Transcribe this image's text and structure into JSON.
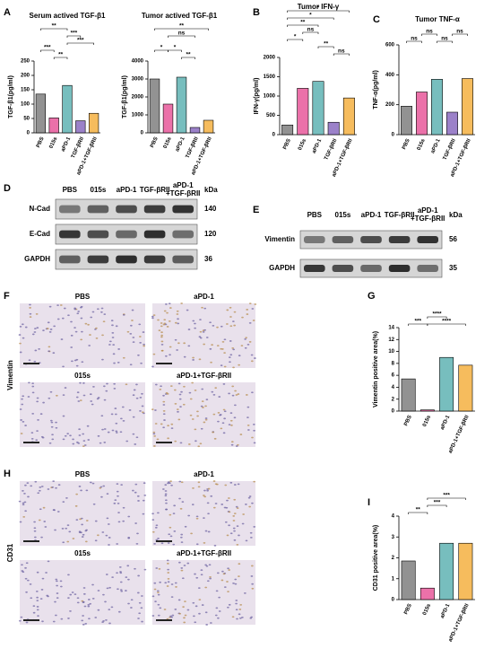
{
  "chart_data": [
    {
      "type": "bar",
      "title": "Serum actived TGF-β1",
      "ylabel": "TGF-β1(pg/ml)",
      "categories": [
        "PBS",
        "015s",
        "aPD-1",
        "TGF-βRII",
        "aPD-1+TGF-βRII"
      ],
      "values": [
        135,
        52,
        165,
        42,
        68
      ],
      "colors": [
        "#7f7f7f",
        "#e8589a",
        "#5fb3b3",
        "#8a6bbf",
        "#f5b041"
      ],
      "ylim": [
        0,
        250
      ],
      "yticks": [
        0,
        50,
        100,
        150,
        200,
        250
      ],
      "annotations": [
        "**",
        "***",
        "***",
        "***",
        "**"
      ]
    },
    {
      "type": "bar",
      "title": "Tumor actived TGF-β1",
      "ylabel": "TGF-β1(pg/ml)",
      "categories": [
        "PBS",
        "015s",
        "aPD-1",
        "TGF-βRII",
        "aPD-1+TGF-βRII"
      ],
      "values": [
        3000,
        1600,
        3100,
        300,
        700
      ],
      "colors": [
        "#7f7f7f",
        "#e8589a",
        "#5fb3b3",
        "#8a6bbf",
        "#f5b041"
      ],
      "ylim": [
        0,
        4000
      ],
      "yticks": [
        0,
        1000,
        2000,
        3000,
        4000
      ],
      "annotations": [
        "**",
        "ns",
        "*",
        "*",
        "**"
      ]
    },
    {
      "type": "bar",
      "title": "Tumor IFN-γ",
      "ylabel": "IFN-γ(pg/ml)",
      "categories": [
        "PBS",
        "015s",
        "aPD-1",
        "TGF-βRII",
        "aPD-1+TGF-βRII"
      ],
      "values": [
        250,
        1200,
        1380,
        320,
        950
      ],
      "colors": [
        "#7f7f7f",
        "#e8589a",
        "#5fb3b3",
        "#8a6bbf",
        "#f5b041"
      ],
      "ylim": [
        0,
        2000
      ],
      "yticks": [
        0,
        500,
        1000,
        1500,
        2000
      ],
      "annotations": [
        "*",
        "*",
        "**",
        "*",
        "ns",
        "**",
        "ns"
      ]
    },
    {
      "type": "bar",
      "title": "Tumor TNF-α",
      "ylabel": "TNF-α(pg/ml)",
      "categories": [
        "PBS",
        "015s",
        "aPD-1",
        "TGF-βRII",
        "aPD-1+TGF-βRII"
      ],
      "values": [
        190,
        285,
        370,
        150,
        375
      ],
      "colors": [
        "#7f7f7f",
        "#e8589a",
        "#5fb3b3",
        "#8a6bbf",
        "#f5b041"
      ],
      "ylim": [
        0,
        600
      ],
      "yticks": [
        0,
        200,
        400,
        600
      ],
      "annotations": [
        "ns",
        "ns",
        "ns",
        "ns"
      ]
    },
    {
      "type": "bar",
      "ylabel": "Vimentin positive area(%)",
      "categories": [
        "PBS",
        "015s",
        "aPD-1",
        "aPD-1+TGF-βRII"
      ],
      "values": [
        5.4,
        0.2,
        9.0,
        7.7
      ],
      "colors": [
        "#7f7f7f",
        "#e8589a",
        "#5fb3b3",
        "#f5b041"
      ],
      "ylim": [
        0,
        14
      ],
      "yticks": [
        0,
        2,
        4,
        6,
        8,
        10,
        12,
        14
      ],
      "annotations": [
        "***",
        "****",
        "****"
      ]
    },
    {
      "type": "bar",
      "ylabel": "CD31 positive area(%)",
      "categories": [
        "PBS",
        "015s",
        "aPD-1",
        "aPD-1+TGF-βRII"
      ],
      "values": [
        1.85,
        0.55,
        2.7,
        2.7
      ],
      "colors": [
        "#7f7f7f",
        "#e8589a",
        "#5fb3b3",
        "#f5b041"
      ],
      "ylim": [
        0,
        4
      ],
      "yticks": [
        0,
        1,
        2,
        3,
        4
      ],
      "annotations": [
        "***",
        "**",
        "***"
      ]
    }
  ],
  "letters": [
    "A",
    "B",
    "C",
    "D",
    "E",
    "F",
    "G",
    "H",
    "I"
  ],
  "blot_d": {
    "lanes": [
      "PBS",
      "015s",
      "aPD-1",
      "TGF-βRII",
      "aPD-1\n+TGF-βRII"
    ],
    "unit": "kDa",
    "rows": [
      {
        "name": "N-Cad",
        "kda": 140
      },
      {
        "name": "E-Cad",
        "kda": 120
      },
      {
        "name": "GAPDH",
        "kda": 36
      }
    ]
  },
  "blot_e": {
    "lanes": [
      "PBS",
      "015s",
      "aPD-1",
      "TGF-βRII",
      "aPD-1\n+TGF-βRII"
    ],
    "unit": "kDa",
    "rows": [
      {
        "name": "Vimentin",
        "kda": 56
      },
      {
        "name": "GAPDH",
        "kda": 35
      }
    ]
  },
  "ihc_f": {
    "marker": "Vimentin",
    "labels": [
      "PBS",
      "aPD-1",
      "015s",
      "aPD-1+TGF-βRII"
    ]
  },
  "ihc_h": {
    "marker": "CD31",
    "labels": [
      "PBS",
      "aPD-1",
      "015s",
      "aPD-1+TGF-βRII"
    ]
  }
}
